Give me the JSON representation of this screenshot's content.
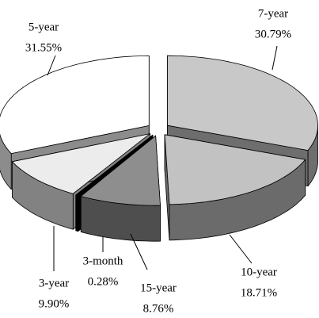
{
  "chart_data": {
    "type": "pie3d",
    "categories": [
      "7-year",
      "10-year",
      "15-year",
      "3-month",
      "3-year",
      "5-year"
    ],
    "values": [
      30.79,
      18.71,
      8.76,
      0.28,
      9.9,
      31.55
    ],
    "value_labels": [
      "30.79%",
      "18.71%",
      "8.76%",
      "0.28%",
      "9.90%",
      "31.55%"
    ],
    "colors": [
      "#c8c8c8",
      "#c2c2c2",
      "#8e8e8e",
      "#000000",
      "#ececec",
      "#ffffff"
    ]
  }
}
